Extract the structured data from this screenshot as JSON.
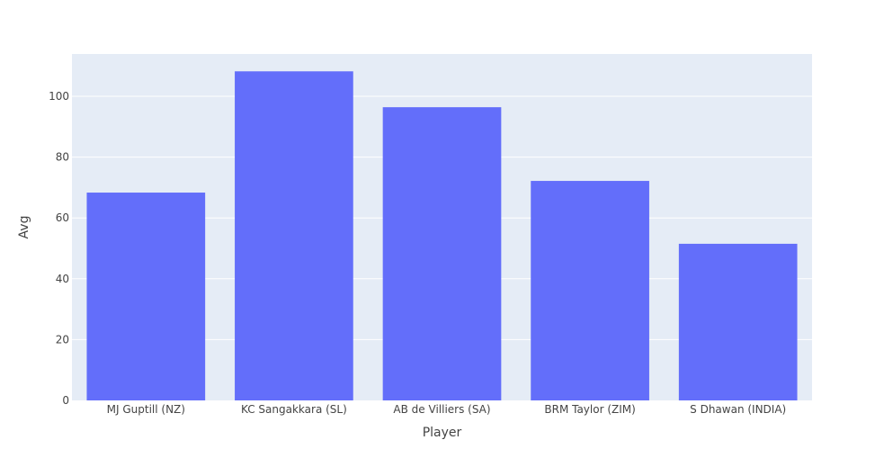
{
  "chart_data": {
    "type": "bar",
    "categories": [
      "MJ Guptill (NZ)",
      "KC Sangakkara (SL)",
      "AB de Villiers (SA)",
      "BRM Taylor (ZIM)",
      "S Dhawan (INDIA)"
    ],
    "values": [
      68.33,
      108.2,
      96.4,
      72.17,
      51.5
    ],
    "xlabel": "Player",
    "ylabel": "Avg",
    "ylim": [
      0,
      113.9
    ],
    "yticks": [
      0,
      20,
      40,
      60,
      80,
      100
    ],
    "grid": true,
    "colors": {
      "bar": "#636efa",
      "plot_background": "#e5ecf6",
      "gridline": "#ffffff",
      "text": "#444444"
    }
  }
}
